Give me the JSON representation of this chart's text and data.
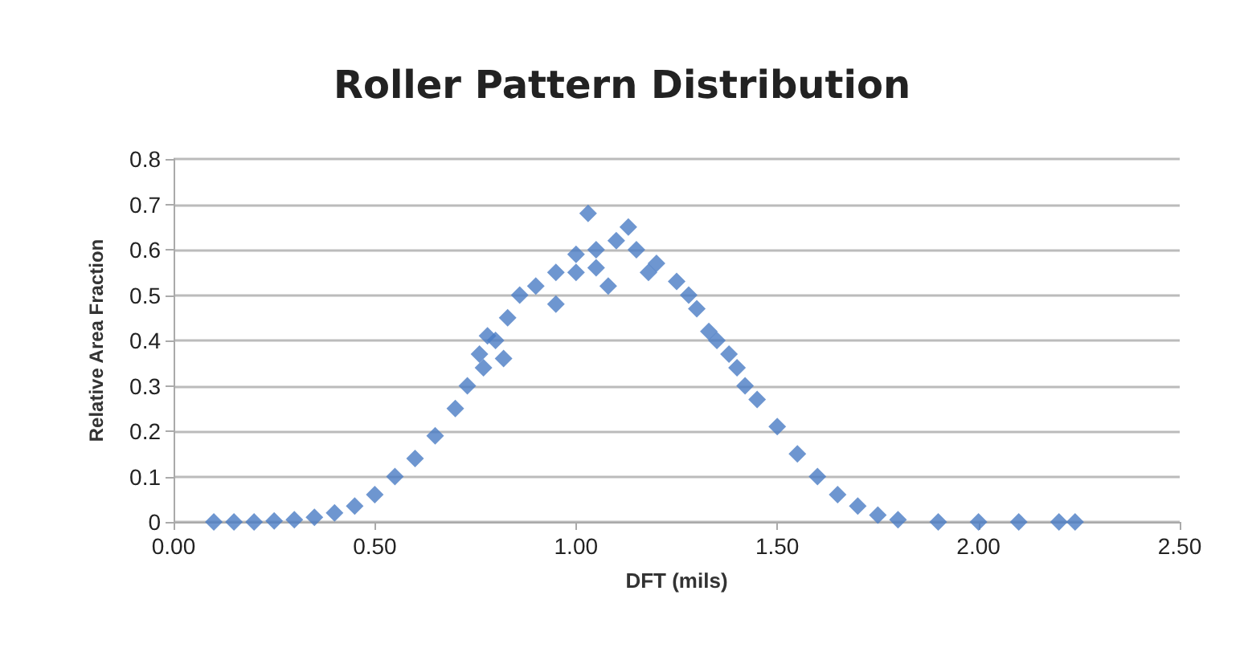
{
  "chart_data": {
    "type": "scatter",
    "title": "Roller Pattern Distribution",
    "xlabel": "DFT (mils)",
    "ylabel": "Relative Area Fraction",
    "x": [
      0.1,
      0.15,
      0.2,
      0.25,
      0.3,
      0.35,
      0.4,
      0.45,
      0.5,
      0.55,
      0.6,
      0.65,
      0.7,
      0.73,
      0.76,
      0.77,
      0.78,
      0.8,
      0.82,
      0.83,
      0.86,
      0.9,
      0.95,
      0.95,
      1.0,
      1.0,
      1.03,
      1.05,
      1.05,
      1.08,
      1.1,
      1.13,
      1.15,
      1.18,
      1.2,
      1.25,
      1.28,
      1.3,
      1.33,
      1.35,
      1.38,
      1.4,
      1.42,
      1.45,
      1.5,
      1.55,
      1.6,
      1.65,
      1.7,
      1.75,
      1.8,
      1.9,
      2.0,
      2.1,
      2.2,
      2.24
    ],
    "series": [
      {
        "color": "#4a7cc4",
        "values": [
          0,
          0,
          0,
          0.002,
          0.005,
          0.01,
          0.02,
          0.035,
          0.06,
          0.1,
          0.14,
          0.19,
          0.25,
          0.3,
          0.37,
          0.34,
          0.41,
          0.4,
          0.36,
          0.45,
          0.5,
          0.52,
          0.55,
          0.48,
          0.59,
          0.55,
          0.68,
          0.6,
          0.56,
          0.52,
          0.62,
          0.65,
          0.6,
          0.55,
          0.57,
          0.53,
          0.5,
          0.47,
          0.42,
          0.4,
          0.37,
          0.34,
          0.3,
          0.27,
          0.21,
          0.15,
          0.1,
          0.06,
          0.035,
          0.015,
          0.005,
          0,
          0,
          0,
          0,
          0
        ]
      }
    ],
    "xlim": [
      0,
      2.5
    ],
    "xticks": [
      {
        "value": 0,
        "label": "0.00"
      },
      {
        "value": 0.5,
        "label": "0.50"
      },
      {
        "value": 1,
        "label": "1.00"
      },
      {
        "value": 1.5,
        "label": "1.50"
      },
      {
        "value": 2,
        "label": "2.00"
      },
      {
        "value": 2.5,
        "label": "2.50"
      }
    ],
    "ylim": [
      0,
      0.8
    ],
    "yticks": [
      {
        "value": 0,
        "label": "0"
      },
      {
        "value": 0.1,
        "label": "0.1"
      },
      {
        "value": 0.2,
        "label": "0.2"
      },
      {
        "value": 0.3,
        "label": "0.3"
      },
      {
        "value": 0.4,
        "label": "0.4"
      },
      {
        "value": 0.5,
        "label": "0.5"
      },
      {
        "value": 0.6,
        "label": "0.6"
      },
      {
        "value": 0.7,
        "label": "0.7"
      },
      {
        "value": 0.8,
        "label": "0.8"
      }
    ],
    "grid": "y",
    "marker": "diamond"
  }
}
